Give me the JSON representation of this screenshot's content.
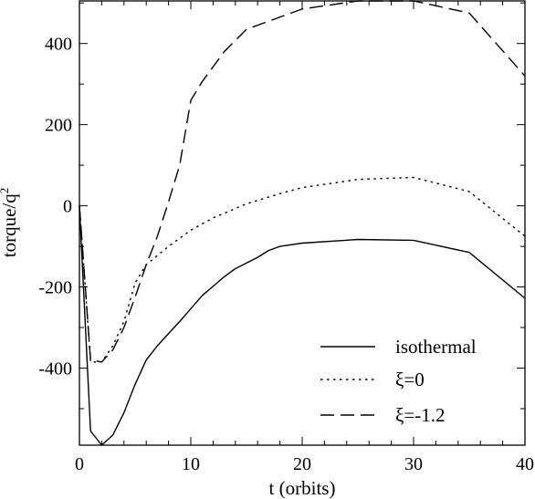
{
  "chart_data": {
    "type": "line",
    "xlabel": "t (orbits)",
    "ylabel": "torque/q",
    "ylabel_superscript": "2",
    "xlim": [
      0,
      40
    ],
    "ylim": [
      -590,
      505
    ],
    "x_ticks": [
      0,
      10,
      20,
      30,
      40
    ],
    "y_ticks": [
      -400,
      -200,
      0,
      200,
      400
    ],
    "legend_position": "bottom-right",
    "grid": false,
    "series": [
      {
        "name": "isothermal",
        "style": "solid",
        "x": [
          0,
          1,
          2,
          3,
          4,
          5,
          6,
          7,
          9,
          11,
          13,
          14,
          16,
          17,
          18,
          20,
          25,
          30,
          35,
          40
        ],
        "y": [
          0,
          -555,
          -590,
          -565,
          -510,
          -440,
          -380,
          -345,
          -285,
          -222,
          -175,
          -155,
          -127,
          -110,
          -100,
          -92,
          -83,
          -85,
          -115,
          -228
        ]
      },
      {
        "name": "ξ=0",
        "style": "dotted",
        "x": [
          0,
          1,
          2,
          3,
          4,
          5,
          6,
          8,
          10,
          12,
          15,
          18,
          20,
          25,
          30,
          35,
          40
        ],
        "y": [
          0,
          -385,
          -385,
          -345,
          -285,
          -190,
          -145,
          -100,
          -60,
          -30,
          5,
          30,
          45,
          65,
          70,
          35,
          -75
        ]
      },
      {
        "name": "ξ=-1.2",
        "style": "dashed",
        "x": [
          0,
          1,
          2,
          3,
          4,
          5,
          6,
          7,
          8,
          9,
          10,
          11,
          13,
          15,
          17,
          20,
          25,
          30,
          35,
          40
        ],
        "y": [
          0,
          -380,
          -385,
          -355,
          -300,
          -225,
          -145,
          -75,
          10,
          100,
          260,
          305,
          380,
          435,
          455,
          485,
          505,
          505,
          475,
          320
        ]
      }
    ]
  }
}
